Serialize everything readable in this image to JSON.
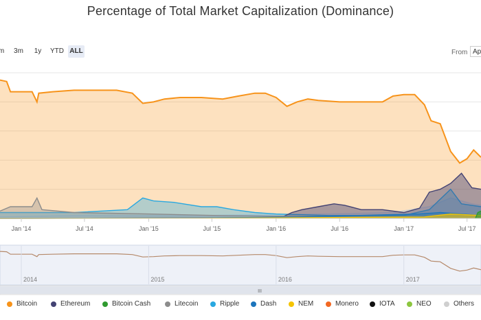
{
  "title": "Percentage of Total Market Capitalization (Dominance)",
  "range_selector": {
    "buttons": [
      {
        "label": "m",
        "active": false
      },
      {
        "label": "3m",
        "active": false
      },
      {
        "label": "1y",
        "active": false
      },
      {
        "label": "YTD",
        "active": false
      },
      {
        "label": "ALL",
        "active": true
      }
    ],
    "from_label": "From",
    "from_value": "Ap"
  },
  "navigator": {
    "year_labels": [
      "2014",
      "2015",
      "2016",
      "2017"
    ],
    "scroll_grip": "III"
  },
  "colors": {
    "Bitcoin": "#f7931a",
    "Ethereum": "#434273",
    "Bitcoin Cash": "#2f9a2f",
    "Litecoin": "#8c8c8c",
    "Ripple": "#29a8e0",
    "Dash": "#1c75bc",
    "NEM": "#f5c400",
    "Monero": "#f26822",
    "IOTA": "#111111",
    "NEO": "#8cc63f",
    "Others": "#cfcfcf"
  },
  "chart_data": {
    "type": "area",
    "title": "Percentage of Total Market Capitalization (Dominance)",
    "x_tick_labels": [
      "Jan '14",
      "Jul '14",
      "Jan '15",
      "Jul '15",
      "Jan '16",
      "Jul '16",
      "Jan '17",
      "Jul '17"
    ],
    "xlabel": "",
    "ylabel": "",
    "ylim": [
      0,
      100
    ],
    "y_gridlines": [
      20,
      40,
      60,
      80,
      100
    ],
    "legend_position": "bottom",
    "series": [
      {
        "name": "Bitcoin",
        "points": [
          [
            "2013-11-01",
            95
          ],
          [
            "2013-11-20",
            94
          ],
          [
            "2013-12-01",
            87
          ],
          [
            "2014-01-15",
            87
          ],
          [
            "2014-02-01",
            87
          ],
          [
            "2014-02-15",
            80
          ],
          [
            "2014-02-20",
            86
          ],
          [
            "2014-04-01",
            87
          ],
          [
            "2014-06-01",
            88
          ],
          [
            "2014-08-01",
            88
          ],
          [
            "2014-10-01",
            88
          ],
          [
            "2014-11-15",
            86
          ],
          [
            "2014-12-15",
            79
          ],
          [
            "2015-01-15",
            80
          ],
          [
            "2015-02-15",
            82
          ],
          [
            "2015-04-01",
            83
          ],
          [
            "2015-06-01",
            83
          ],
          [
            "2015-08-01",
            82
          ],
          [
            "2015-09-15",
            84
          ],
          [
            "2015-11-01",
            86
          ],
          [
            "2015-12-01",
            86
          ],
          [
            "2016-01-01",
            83
          ],
          [
            "2016-02-01",
            77
          ],
          [
            "2016-03-01",
            80
          ],
          [
            "2016-04-01",
            82
          ],
          [
            "2016-05-01",
            81
          ],
          [
            "2016-07-01",
            80
          ],
          [
            "2016-09-01",
            80
          ],
          [
            "2016-11-01",
            80
          ],
          [
            "2016-12-01",
            84
          ],
          [
            "2017-01-01",
            85
          ],
          [
            "2017-02-01",
            85
          ],
          [
            "2017-03-01",
            78
          ],
          [
            "2017-03-20",
            67
          ],
          [
            "2017-04-15",
            65
          ],
          [
            "2017-05-15",
            46
          ],
          [
            "2017-06-10",
            38
          ],
          [
            "2017-07-01",
            41
          ],
          [
            "2017-07-20",
            47
          ],
          [
            "2017-08-10",
            42
          ]
        ]
      },
      {
        "name": "Ethereum",
        "points": [
          [
            "2013-11-01",
            0
          ],
          [
            "2016-01-15",
            0.5
          ],
          [
            "2016-02-15",
            4
          ],
          [
            "2016-03-15",
            6
          ],
          [
            "2016-05-01",
            8
          ],
          [
            "2016-06-15",
            10
          ],
          [
            "2016-07-15",
            9
          ],
          [
            "2016-09-01",
            6
          ],
          [
            "2016-11-01",
            6
          ],
          [
            "2017-01-01",
            4
          ],
          [
            "2017-02-15",
            7
          ],
          [
            "2017-03-15",
            18
          ],
          [
            "2017-04-15",
            20
          ],
          [
            "2017-05-15",
            24
          ],
          [
            "2017-06-15",
            31
          ],
          [
            "2017-07-15",
            21
          ],
          [
            "2017-08-10",
            20
          ]
        ]
      },
      {
        "name": "Ripple",
        "points": [
          [
            "2013-11-01",
            4
          ],
          [
            "2014-06-01",
            4
          ],
          [
            "2014-11-01",
            6
          ],
          [
            "2014-12-15",
            14
          ],
          [
            "2015-01-15",
            12
          ],
          [
            "2015-03-15",
            11
          ],
          [
            "2015-06-01",
            8
          ],
          [
            "2015-07-15",
            8
          ],
          [
            "2015-09-01",
            6
          ],
          [
            "2015-11-01",
            4
          ],
          [
            "2016-01-01",
            3
          ],
          [
            "2016-06-01",
            2
          ],
          [
            "2017-01-01",
            2
          ],
          [
            "2017-03-15",
            6
          ],
          [
            "2017-05-15",
            20
          ],
          [
            "2017-06-15",
            10
          ],
          [
            "2017-08-10",
            8
          ]
        ]
      },
      {
        "name": "Litecoin",
        "points": [
          [
            "2013-11-01",
            5
          ],
          [
            "2013-12-01",
            8
          ],
          [
            "2014-02-01",
            8
          ],
          [
            "2014-02-15",
            14
          ],
          [
            "2014-03-01",
            6
          ],
          [
            "2014-06-01",
            4
          ],
          [
            "2015-01-01",
            3
          ],
          [
            "2015-07-15",
            2
          ],
          [
            "2016-01-01",
            1.5
          ],
          [
            "2017-01-01",
            1.5
          ],
          [
            "2017-04-15",
            3
          ],
          [
            "2017-05-15",
            1.5
          ],
          [
            "2017-08-10",
            2
          ]
        ]
      },
      {
        "name": "Others",
        "points": [
          [
            "2013-11-01",
            1
          ],
          [
            "2014-06-01",
            2
          ],
          [
            "2015-06-01",
            2
          ],
          [
            "2016-06-01",
            3
          ],
          [
            "2016-12-01",
            4
          ],
          [
            "2017-03-15",
            8
          ],
          [
            "2017-05-15",
            14
          ],
          [
            "2017-07-15",
            10
          ],
          [
            "2017-08-10",
            9
          ]
        ]
      },
      {
        "name": "Dash",
        "points": [
          [
            "2013-11-01",
            0
          ],
          [
            "2015-06-01",
            0.3
          ],
          [
            "2016-03-01",
            1
          ],
          [
            "2017-02-15",
            3
          ],
          [
            "2017-04-15",
            4
          ],
          [
            "2017-08-10",
            2
          ]
        ]
      },
      {
        "name": "NEM",
        "points": [
          [
            "2013-11-01",
            0
          ],
          [
            "2015-06-01",
            0.1
          ],
          [
            "2017-03-01",
            1
          ],
          [
            "2017-05-15",
            3
          ],
          [
            "2017-08-10",
            2
          ]
        ]
      },
      {
        "name": "Bitcoin Cash",
        "points": [
          [
            "2017-07-25",
            0
          ],
          [
            "2017-08-01",
            4
          ],
          [
            "2017-08-10",
            5
          ]
        ]
      }
    ]
  },
  "legend": [
    {
      "name": "Bitcoin"
    },
    {
      "name": "Ethereum"
    },
    {
      "name": "Bitcoin Cash"
    },
    {
      "name": "Litecoin"
    },
    {
      "name": "Ripple"
    },
    {
      "name": "Dash"
    },
    {
      "name": "NEM"
    },
    {
      "name": "Monero"
    },
    {
      "name": "IOTA"
    },
    {
      "name": "NEO"
    },
    {
      "name": "Others"
    }
  ]
}
